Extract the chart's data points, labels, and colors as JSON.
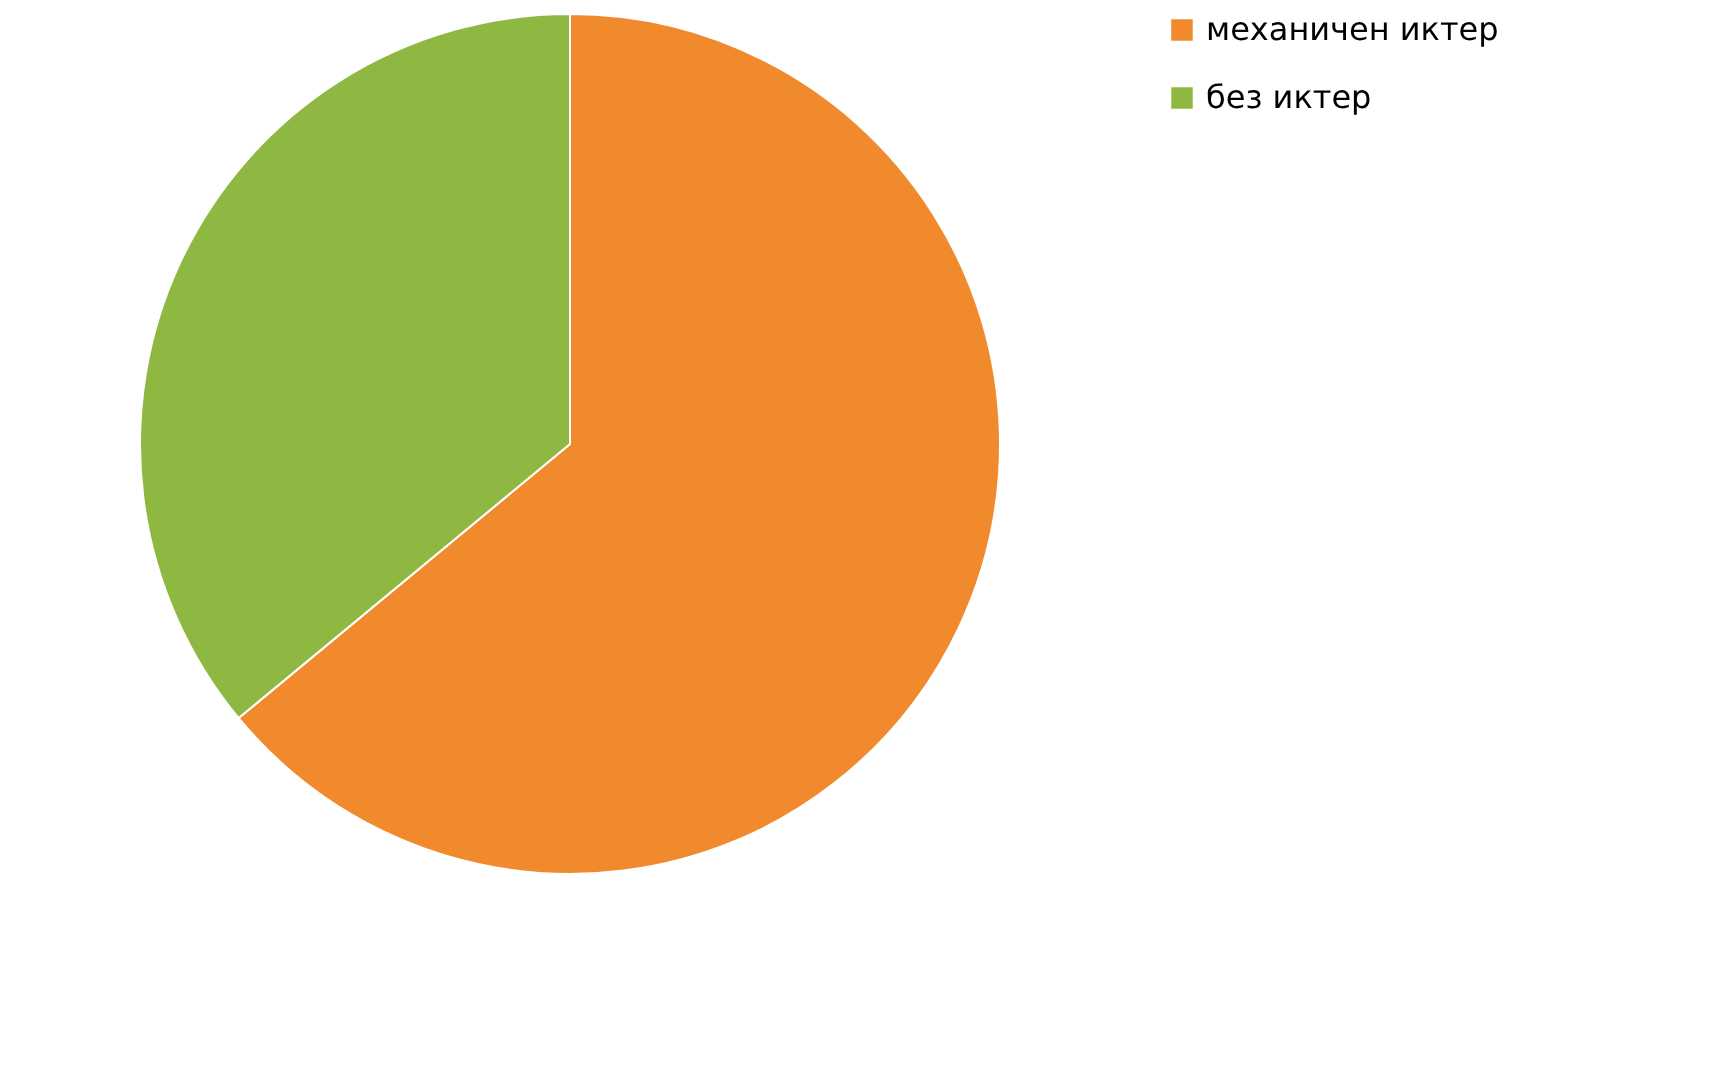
{
  "chart_data": {
    "type": "pie",
    "categories": [
      "механичен иктер",
      "без иктер"
    ],
    "values": [
      64,
      36
    ],
    "colors": [
      "#f08a2c",
      "#8fb843"
    ],
    "legend": "right"
  }
}
